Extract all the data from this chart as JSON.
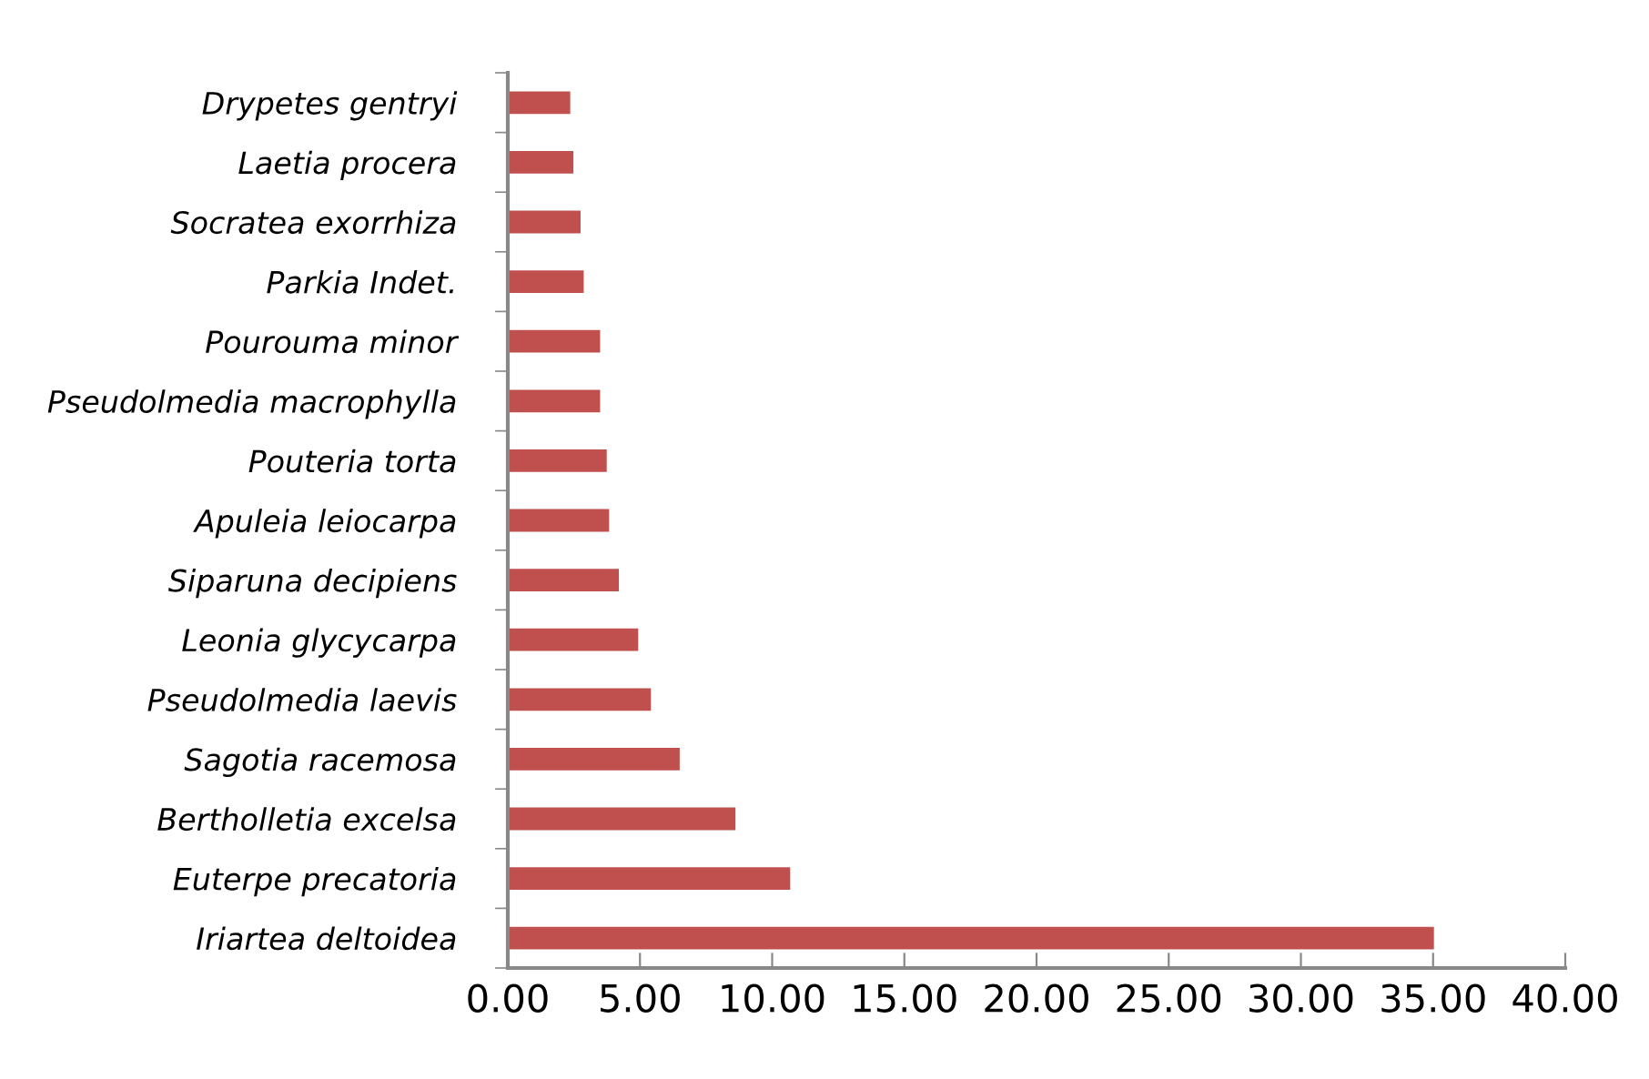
{
  "chart_data": {
    "type": "bar",
    "orientation": "horizontal",
    "color": "#c0504d",
    "categories": [
      "Drypetes gentryi",
      "Laetia procera",
      "Socratea exorrhiza",
      "Parkia Indet.",
      "Pourouma minor",
      "Pseudolmedia macrophylla",
      "Pouteria torta",
      "Apuleia leiocarpa",
      "Siparuna decipiens",
      "Leonia glycycarpa",
      "Pseudolmedia laevis",
      "Sagotia racemosa",
      "Bertholletia excelsa",
      "Euterpe precatoria",
      "Iriartea deltoidea"
    ],
    "values": [
      2.41,
      2.53,
      2.8,
      2.92,
      3.54,
      3.54,
      3.79,
      3.88,
      4.25,
      4.98,
      5.46,
      6.55,
      8.66,
      10.73,
      35.08
    ],
    "xlim": [
      0,
      40
    ],
    "xticks": [
      {
        "value": 0,
        "label": "0.00"
      },
      {
        "value": 5,
        "label": "5.00"
      },
      {
        "value": 10,
        "label": "10.00"
      },
      {
        "value": 15,
        "label": "15.00"
      },
      {
        "value": 20,
        "label": "20.00"
      },
      {
        "value": 25,
        "label": "25.00"
      },
      {
        "value": 30,
        "label": "30.00"
      },
      {
        "value": 35,
        "label": "35.00"
      },
      {
        "value": 40,
        "label": "40.00"
      }
    ],
    "grid": false,
    "legend": false
  }
}
